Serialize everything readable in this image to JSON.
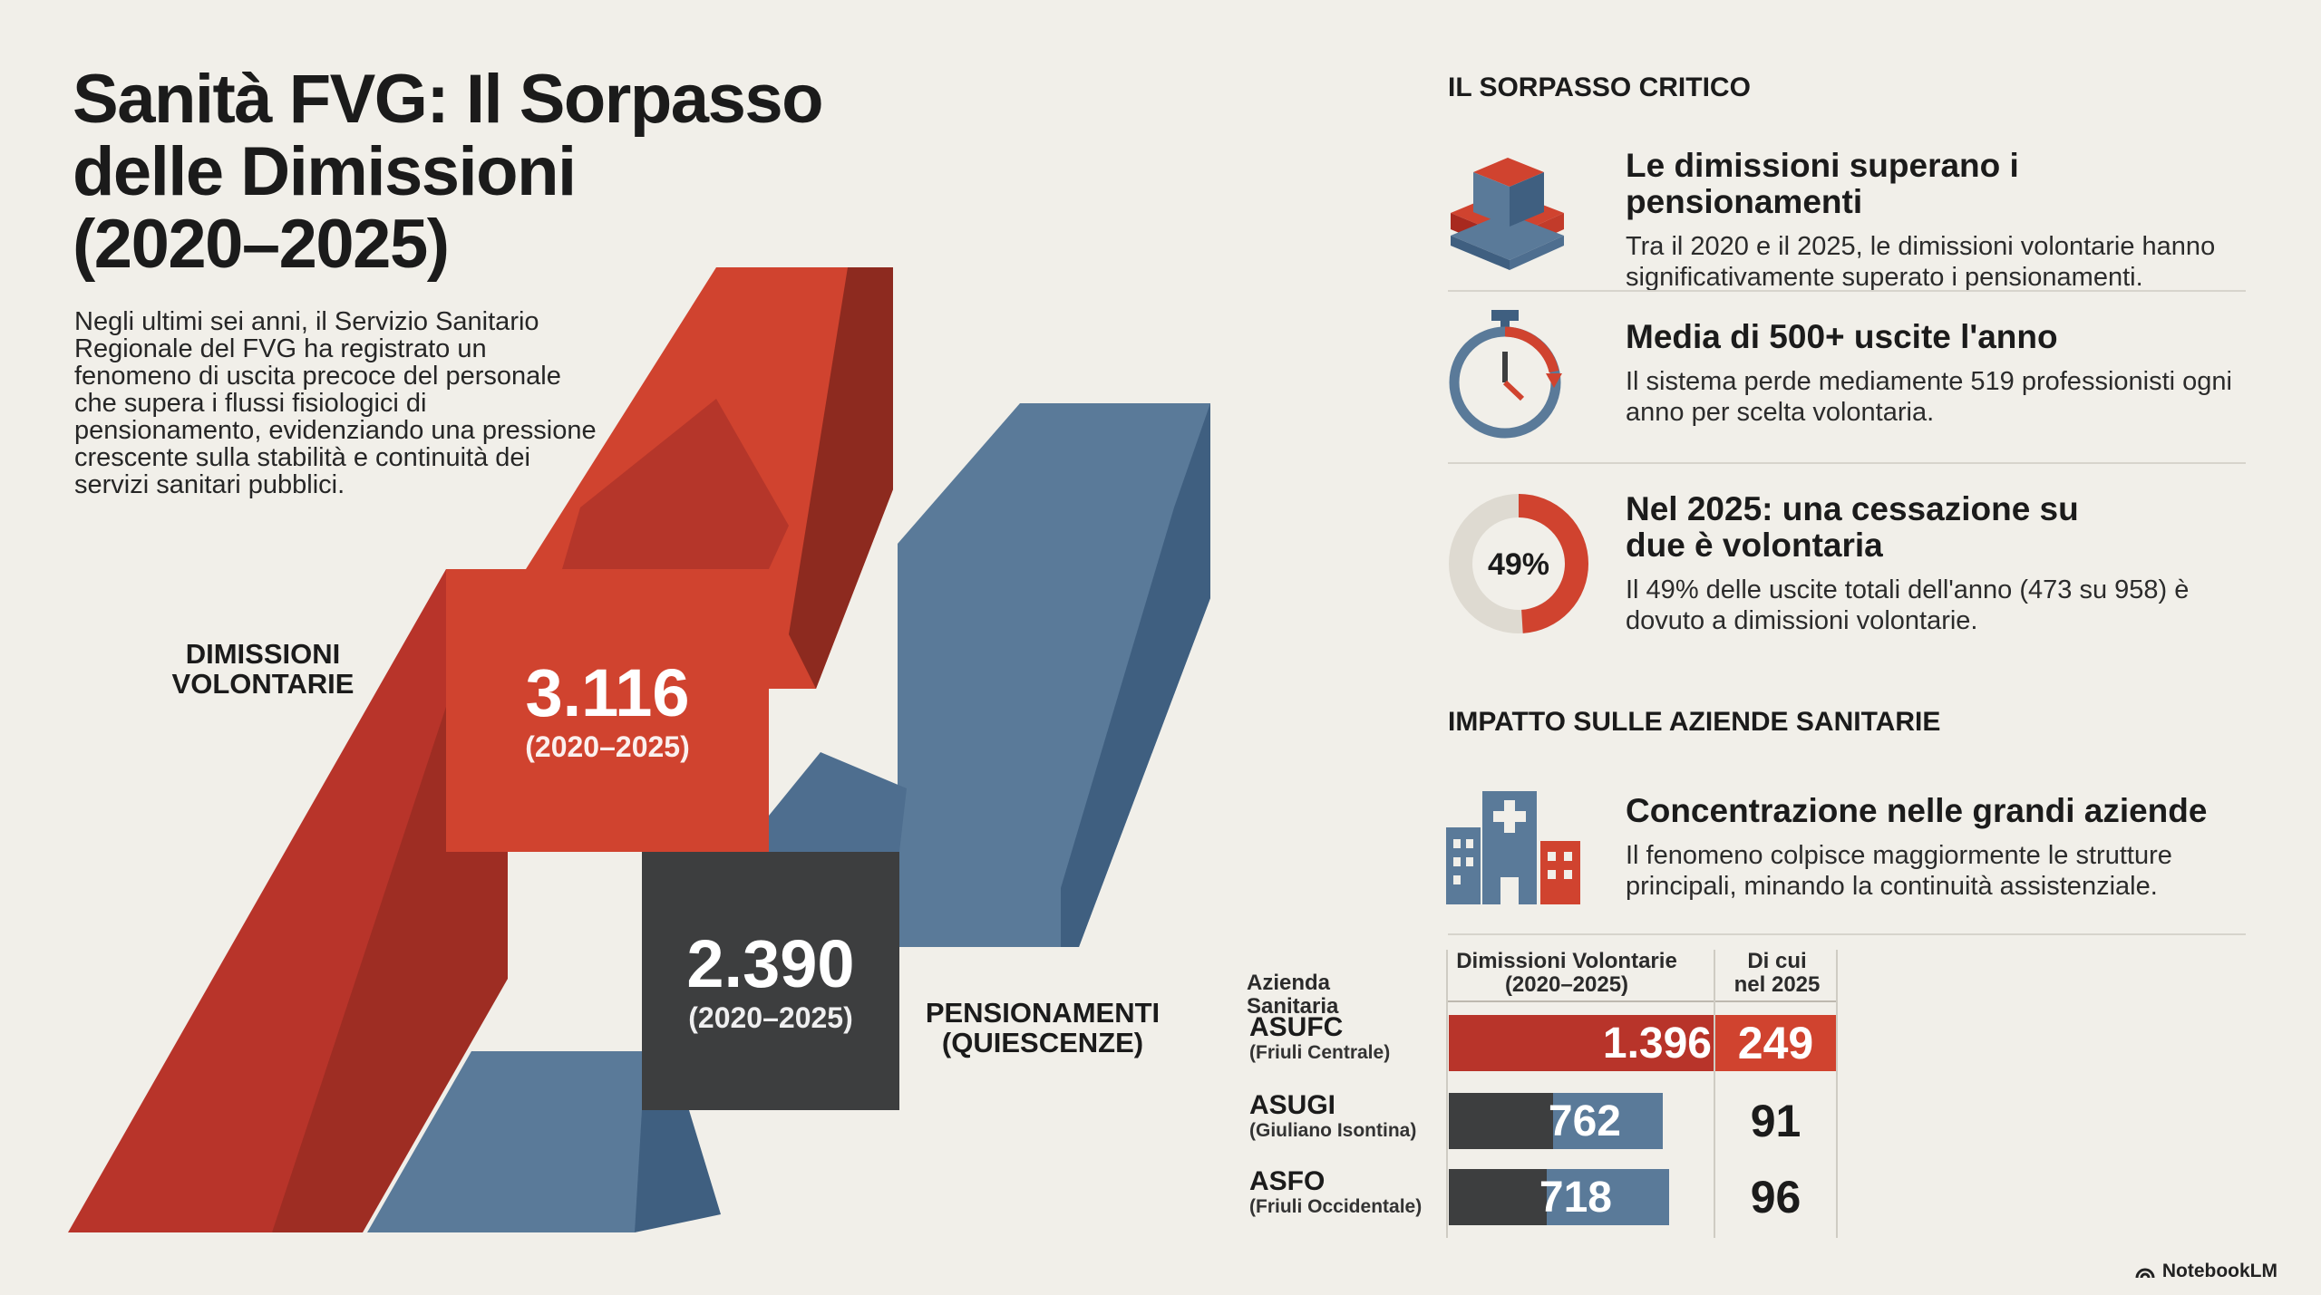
{
  "title_lines": [
    "Sanità FVG: Il Sorpasso",
    "delle Dimissioni",
    "(2020–2025)"
  ],
  "intro": "Negli ultimi sei anni, il Servizio Sanitario Regionale del FVG ha registrato un fenomeno di uscita precoce del personale che supera i flussi fisiologici di pensionamento, evidenziando una pressione crescente sulla stabilità e continuità dei servizi sanitari pubblici.",
  "comparison": {
    "dimissioni": {
      "label_lines": [
        "DIMISSIONI",
        "VOLONTARIE"
      ],
      "value": "3.116",
      "period": "(2020–2025)",
      "value_num": 3116
    },
    "pensionamenti": {
      "label_lines": [
        "PENSIONAMENTI",
        "(QUIESCENZE)"
      ],
      "value": "2.390",
      "period": "(2020–2025)",
      "value_num": 2390
    }
  },
  "section_critico": {
    "heading": "IL SORPASSO CRITICO",
    "items": [
      {
        "title": "Le dimissioni superano i pensionamenti",
        "text": "Tra il 2020 e il 2025, le dimissioni volontarie hanno significativamente superato i pensionamenti.",
        "icon": "stacked-blocks-icon"
      },
      {
        "title": "Media di 500+ uscite l'anno",
        "text": "Il sistema perde mediamente 519 professionisti ogni anno per scelta volontaria.",
        "icon": "stopwatch-icon"
      },
      {
        "title": "Nel 2025: una cessazione su due è volontaria",
        "text": "Il 49% delle uscite totali dell'anno (473 su 958) è dovuto a dimissioni volontarie.",
        "icon": "donut-icon",
        "donut_label": "49%",
        "donut_fraction": 0.49
      }
    ]
  },
  "section_impatto": {
    "heading": "IMPATTO SULLE AZIENDE SANITARIE",
    "item": {
      "title": "Concentrazione nelle grandi aziende",
      "text": "Il fenomeno colpisce maggiormente le strutture principali, minando la continuità assistenziale.",
      "icon": "hospital-building-icon"
    }
  },
  "table": {
    "headers": {
      "azienda": "Azienda Sanitaria",
      "dimissioni_lines": [
        "Dimissioni Volontarie",
        "(2020–2025)"
      ],
      "y2025_lines": [
        "Di cui",
        "nel 2025"
      ]
    },
    "rows": [
      {
        "name": "ASUFC",
        "sub": "(Friuli Centrale)",
        "value": "1.396",
        "value_num": 1396,
        "y2025": "249",
        "highlight": true
      },
      {
        "name": "ASUGI",
        "sub": "(Giuliano Isontina)",
        "value": "762",
        "value_num": 762,
        "y2025": "91",
        "highlight": false
      },
      {
        "name": "ASFO",
        "sub": "(Friuli Occidentale)",
        "value": "718",
        "value_num": 718,
        "y2025": "96",
        "highlight": false
      }
    ]
  },
  "brand": "NotebookLM",
  "colors": {
    "red": "#d0432f",
    "dark_red": "#a8291f",
    "blue": "#5a7a99",
    "dark": "#3d3e3f",
    "background": "#f1efe9"
  }
}
